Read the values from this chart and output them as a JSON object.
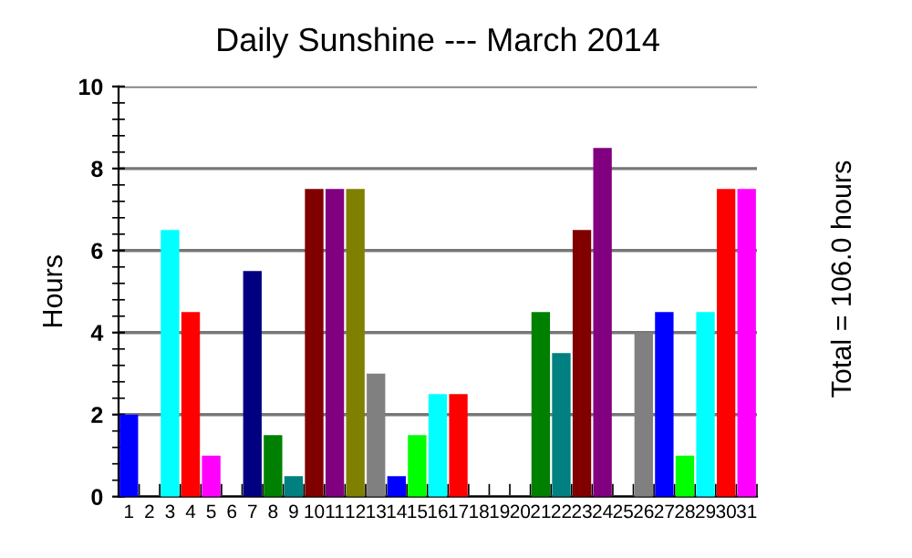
{
  "chart_data": {
    "type": "bar",
    "title": "Daily Sunshine --- March 2014",
    "ylabel": "Hours",
    "categories": [
      "1",
      "2",
      "3",
      "4",
      "5",
      "6",
      "7",
      "8",
      "9",
      "10",
      "11",
      "12",
      "13",
      "14",
      "15",
      "16",
      "17",
      "18",
      "19",
      "20",
      "21",
      "22",
      "23",
      "24",
      "25",
      "26",
      "27",
      "28",
      "29",
      "30",
      "31"
    ],
    "values": [
      2,
      0,
      6.5,
      4.5,
      1,
      0,
      5.5,
      1.5,
      0.5,
      7.5,
      7.5,
      7.5,
      3,
      0.5,
      1.5,
      2.5,
      2.5,
      0,
      0,
      0,
      4.5,
      3.5,
      6.5,
      8.5,
      0,
      4,
      4.5,
      1,
      4.5,
      7.5,
      7.5
    ],
    "colors": [
      "#0000ff",
      "#00ff00",
      "#00ffff",
      "#ff0000",
      "#ff00ff",
      "#ffff00",
      "#000080",
      "#008000",
      "#008080",
      "#800000",
      "#800080",
      "#808000",
      "#808080",
      "#0000ff",
      "#00ff00",
      "#00ffff",
      "#ff0000",
      "#ff00ff",
      "#ffff00",
      "#000080",
      "#008000",
      "#008080",
      "#800000",
      "#800080",
      "#808000",
      "#808080",
      "#0000ff",
      "#00ff00",
      "#00ffff",
      "#ff0000",
      "#ff00ff"
    ],
    "ylim": [
      0,
      10
    ],
    "yticks": [
      0,
      2,
      4,
      6,
      8,
      10
    ],
    "grid": "y",
    "annotations": [
      "Total = 106.0 hours"
    ]
  }
}
